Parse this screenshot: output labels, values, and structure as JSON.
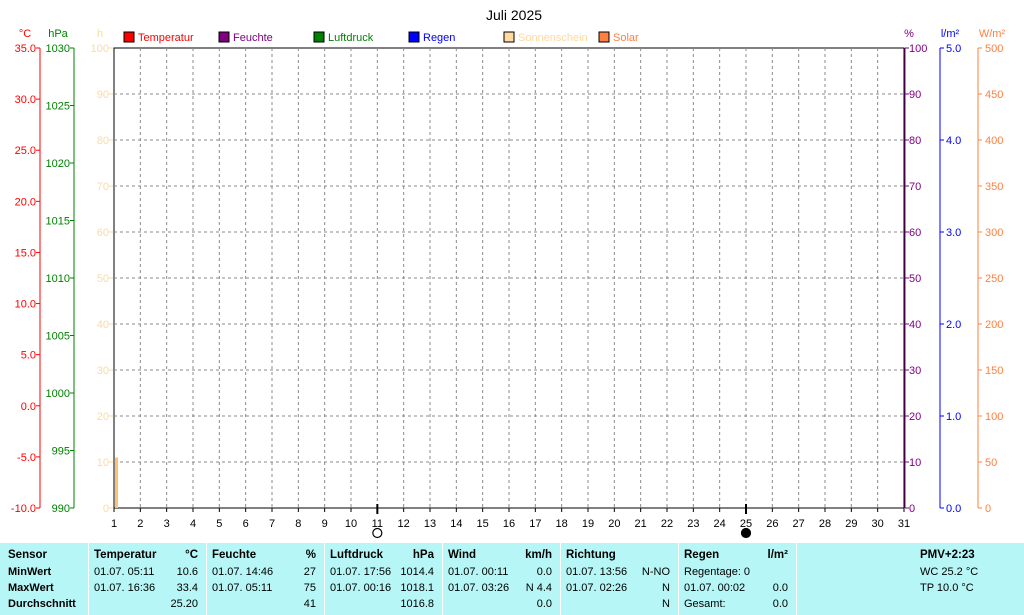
{
  "chart_data": {
    "type": "line",
    "title": "Juli 2025",
    "x_ticks": [
      "1",
      "2",
      "3",
      "4",
      "5",
      "6",
      "7",
      "8",
      "9",
      "10",
      "11",
      "12",
      "13",
      "14",
      "15",
      "16",
      "17",
      "18",
      "19",
      "20",
      "21",
      "22",
      "23",
      "24",
      "25",
      "26",
      "27",
      "28",
      "29",
      "30",
      "31"
    ],
    "xlim": [
      1,
      31
    ],
    "grid": true,
    "legend_position": "top",
    "legend": [
      {
        "label": "Temperatur",
        "color": "#ff0000"
      },
      {
        "label": "Feuchte",
        "color": "#800080"
      },
      {
        "label": "Luftdruck",
        "color": "#008000"
      },
      {
        "label": "Regen",
        "color": "#0000ff"
      },
      {
        "label": "Sonnenschein",
        "color": "#ffd9a0"
      },
      {
        "label": "Solar",
        "color": "#ff8040"
      }
    ],
    "axes": {
      "temp": {
        "unit": "°C",
        "color": "#ff0000",
        "range": [
          -10,
          35
        ],
        "ticks": [
          "35.0",
          "30.0",
          "25.0",
          "20.0",
          "15.0",
          "10.0",
          "5.0",
          "0.0",
          "-5.0",
          "-10.0"
        ]
      },
      "pressure": {
        "unit": "hPa",
        "color": "#008000",
        "range": [
          990,
          1030
        ],
        "ticks": [
          "1030",
          "1025",
          "1020",
          "1015",
          "1010",
          "1005",
          "1000",
          "995",
          "990"
        ]
      },
      "sun": {
        "unit": "h",
        "color": "#ffd9a0",
        "range": [
          0,
          100
        ],
        "ticks": [
          "100",
          "90",
          "80",
          "70",
          "60",
          "50",
          "40",
          "30",
          "20",
          "10",
          "0"
        ]
      },
      "humidity": {
        "unit": "%",
        "color": "#800080",
        "range": [
          0,
          100
        ],
        "ticks": [
          "100",
          "90",
          "80",
          "70",
          "60",
          "50",
          "40",
          "30",
          "20",
          "10",
          "0"
        ]
      },
      "rain": {
        "unit": "l/m²",
        "color": "#0000ff",
        "range": [
          0,
          5
        ],
        "ticks": [
          "5.0",
          "4.0",
          "3.0",
          "2.0",
          "1.0",
          "0.0"
        ]
      },
      "solar": {
        "unit": "W/m²",
        "color": "#ff8040",
        "range": [
          0,
          500
        ],
        "ticks": [
          "500",
          "450",
          "400",
          "350",
          "300",
          "250",
          "200",
          "150",
          "100",
          "50",
          "0"
        ]
      }
    },
    "series": [
      {
        "name": "Sonnenschein",
        "axis": "sun",
        "type": "bar",
        "x": [
          1
        ],
        "values": [
          11
        ]
      }
    ],
    "moon_phases": [
      {
        "day": 11,
        "phase": "full"
      },
      {
        "day": 25,
        "phase": "new"
      }
    ]
  },
  "stats": {
    "sensor": {
      "header": "Sensor",
      "min": "MinWert",
      "max": "MaxWert",
      "avg": "Durchschnitt"
    },
    "temperature": {
      "header": "Temperatur",
      "unit": "°C",
      "min_time": "01.07.  05:11",
      "min_val": "10.6",
      "max_time": "01.07.  16:36",
      "max_val": "33.4",
      "avg": "25.20"
    },
    "humidity": {
      "header": "Feuchte",
      "unit": "%",
      "min_time": "01.07.  14:46",
      "min_val": "27",
      "max_time": "01.07.  05:11",
      "max_val": "75",
      "avg": "41"
    },
    "pressure": {
      "header": "Luftdruck",
      "unit": "hPa",
      "min_time": "01.07.  17:56",
      "min_val": "1014.4",
      "max_time": "01.07.  00:16",
      "max_val": "1018.1",
      "avg": "1016.8"
    },
    "wind": {
      "header": "Wind",
      "unit": "km/h",
      "min_time": "01.07.  00:11",
      "min_val": "0.0",
      "max_time": "01.07.  03:26",
      "max_val": "N 4.4",
      "avg": "0.0"
    },
    "direction": {
      "header": "Richtung",
      "min_time": "01.07.  13:56",
      "min_val": "N-NO",
      "max_time": "01.07.  02:26",
      "max_val": "N",
      "avg": "N"
    },
    "rain": {
      "header": "Regen",
      "unit": "l/m²",
      "row1": "Regentage: 0",
      "row2_time": "01.07.  00:02",
      "row2_val": "0.0",
      "row3": "Gesamt:",
      "row3_val": "0.0"
    },
    "pmv": {
      "header": "PMV+2:23",
      "wc": "WC 25.2 °C",
      "tp": "TP 10.0 °C"
    }
  }
}
